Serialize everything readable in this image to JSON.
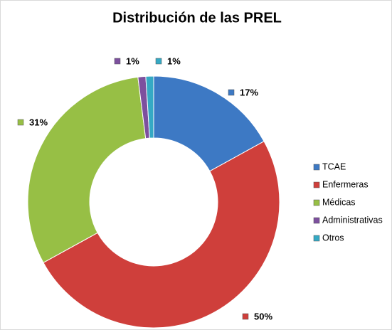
{
  "chart_data": {
    "type": "donut",
    "title": "Distribución de las PREL",
    "categories": [
      "TCAE",
      "Enfermeras",
      "Médicas",
      "Administrativas",
      "Otros"
    ],
    "values": [
      17,
      50,
      31,
      1,
      1
    ],
    "value_labels": [
      "17%",
      "50%",
      "31%",
      "1%",
      "1%"
    ],
    "colors": [
      "#3d79c4",
      "#cf3f3b",
      "#97bf45",
      "#7d509e",
      "#35a9c4"
    ],
    "legend": "right"
  }
}
